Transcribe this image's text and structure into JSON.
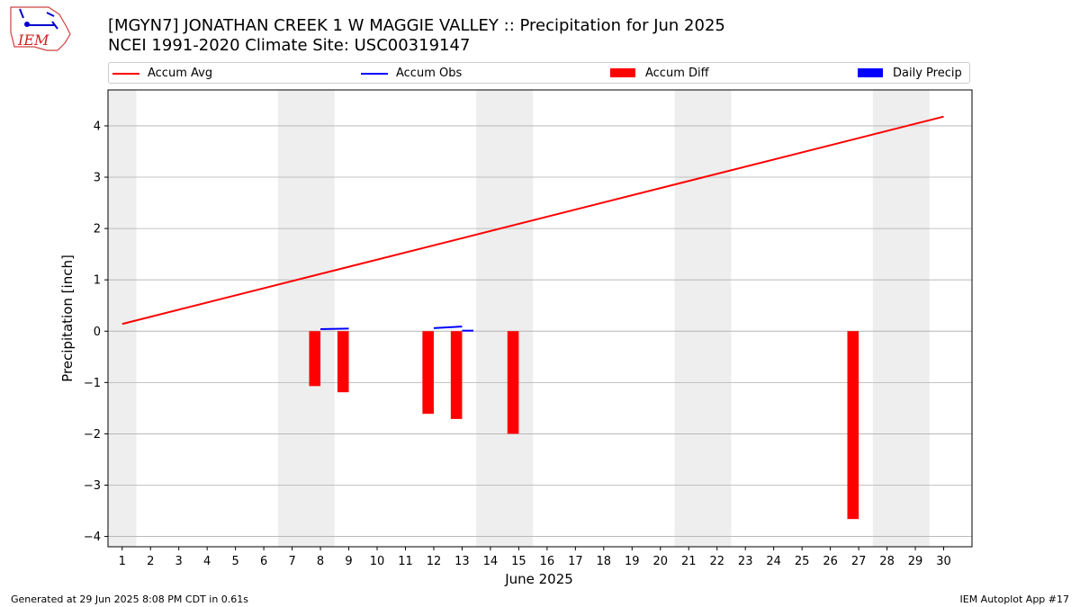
{
  "header": {
    "title_line1": "[MGYN7] JONATHAN CREEK 1 W MAGGIE VALLEY :: Precipitation for Jun 2025",
    "title_line2": "NCEI 1991-2020 Climate Site: USC00319147",
    "logo_text": "IEM"
  },
  "legend": {
    "items": [
      {
        "label": "Accum Avg",
        "color": "#ff0000",
        "kind": "line"
      },
      {
        "label": "Accum Obs",
        "color": "#0000ff",
        "kind": "line"
      },
      {
        "label": "Accum Diff",
        "color": "#ff0000",
        "kind": "bar"
      },
      {
        "label": "Daily Precip",
        "color": "#0000ff",
        "kind": "bar"
      }
    ]
  },
  "footer": {
    "generated": "Generated at 29 Jun 2025 8:08 PM CDT in 0.61s",
    "app": "IEM Autoplot App #17"
  },
  "chart_data": {
    "type": "bar",
    "xlabel": "June 2025",
    "ylabel": "Precipitation [inch]",
    "xlim": [
      0.5,
      31.0
    ],
    "ylim": [
      -4.2,
      4.7
    ],
    "x_ticks": [
      1,
      2,
      3,
      4,
      5,
      6,
      7,
      8,
      9,
      10,
      11,
      12,
      13,
      14,
      15,
      16,
      17,
      18,
      19,
      20,
      21,
      22,
      23,
      24,
      25,
      26,
      27,
      28,
      29,
      30
    ],
    "y_ticks": [
      -4,
      -3,
      -2,
      -1,
      0,
      1,
      2,
      3,
      4
    ],
    "grid": "horizontal",
    "legend_position": "top",
    "weekend_shading": [
      [
        0.5,
        1.5
      ],
      [
        6.5,
        8.5
      ],
      [
        13.5,
        15.5
      ],
      [
        20.5,
        22.5
      ],
      [
        27.5,
        29.5
      ]
    ],
    "colors": {
      "accum_avg": "#ff0000",
      "accum_obs": "#0000ff",
      "accum_diff": "#ff0000",
      "daily_precip": "#0000ff",
      "shade": "#eeeeee",
      "grid": "#b0b0b0"
    },
    "series": [
      {
        "name": "Accum Avg",
        "kind": "line",
        "x": [
          1,
          30
        ],
        "values": [
          0.14,
          4.18
        ]
      },
      {
        "name": "Accum Obs",
        "kind": "line",
        "segments": [
          {
            "x": [
              8,
              9
            ],
            "values": [
              0.04,
              0.05
            ]
          },
          {
            "x": [
              12,
              13
            ],
            "values": [
              0.06,
              0.09
            ]
          },
          {
            "x": [
              13,
              13.4
            ],
            "values": [
              0.01,
              0.01
            ]
          }
        ]
      },
      {
        "name": "Accum Diff",
        "kind": "bar",
        "x": [
          7.8,
          8.8,
          11.8,
          12.8,
          14.8,
          26.8
        ],
        "values": [
          -1.07,
          -1.19,
          -1.61,
          -1.71,
          -2.0,
          -3.66
        ]
      },
      {
        "name": "Daily Precip",
        "kind": "bar",
        "x": [],
        "values": []
      }
    ]
  }
}
